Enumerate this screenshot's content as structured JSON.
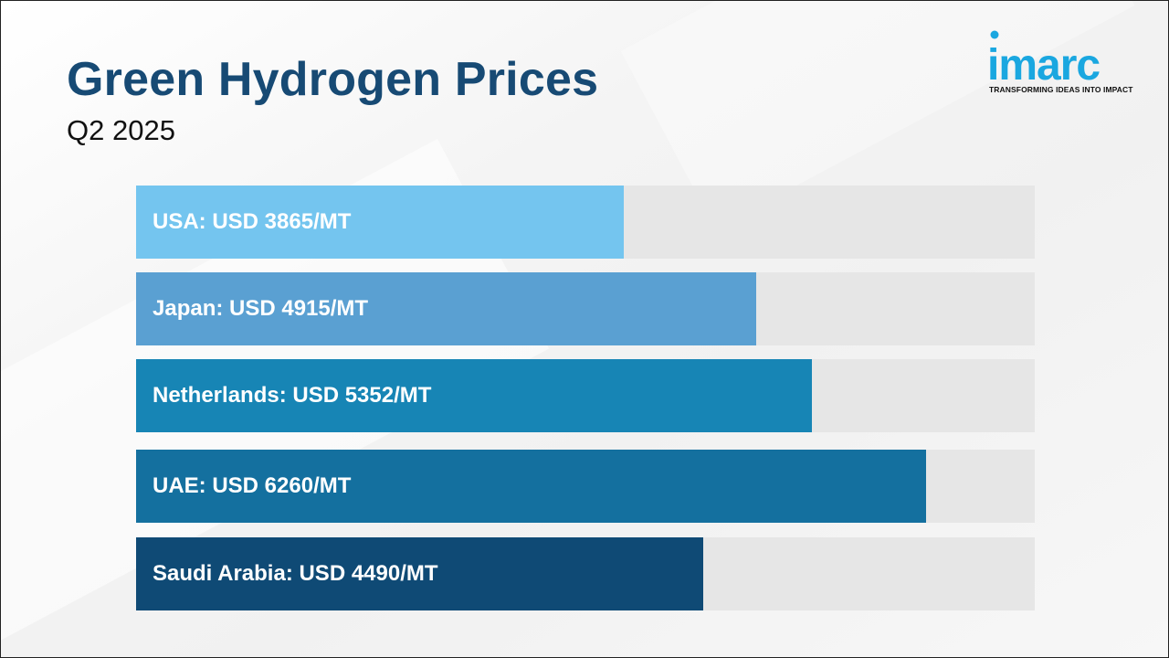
{
  "header": {
    "title": "Green Hydrogen Prices",
    "subtitle": "Q2 2025"
  },
  "logo": {
    "wordmark": "imarc",
    "tagline": "TRANSFORMING IDEAS INTO IMPACT",
    "colors": {
      "text": "#1aa7e0",
      "dot": "#1aa7e0"
    }
  },
  "chart_data": {
    "type": "bar",
    "orientation": "horizontal",
    "title": "Green Hydrogen Prices",
    "subtitle": "Q2 2025",
    "unit": "USD/MT",
    "xlim": [
      0,
      7120
    ],
    "grid": false,
    "categories": [
      "USA",
      "Japan",
      "Netherlands",
      "UAE",
      "Saudi Arabia"
    ],
    "values": [
      3865,
      4915,
      5352,
      6260,
      4490
    ],
    "labels": [
      "USA: USD 3865/MT",
      "Japan: USD 4915/MT",
      "Netherlands: USD 5352/MT",
      "UAE: USD 6260/MT",
      "Saudi Arabia: USD 4490/MT"
    ],
    "colors": [
      "#74c5ef",
      "#5aa0d2",
      "#1785b5",
      "#14709f",
      "#0f4a75"
    ],
    "track_color": "#e6e6e6"
  }
}
